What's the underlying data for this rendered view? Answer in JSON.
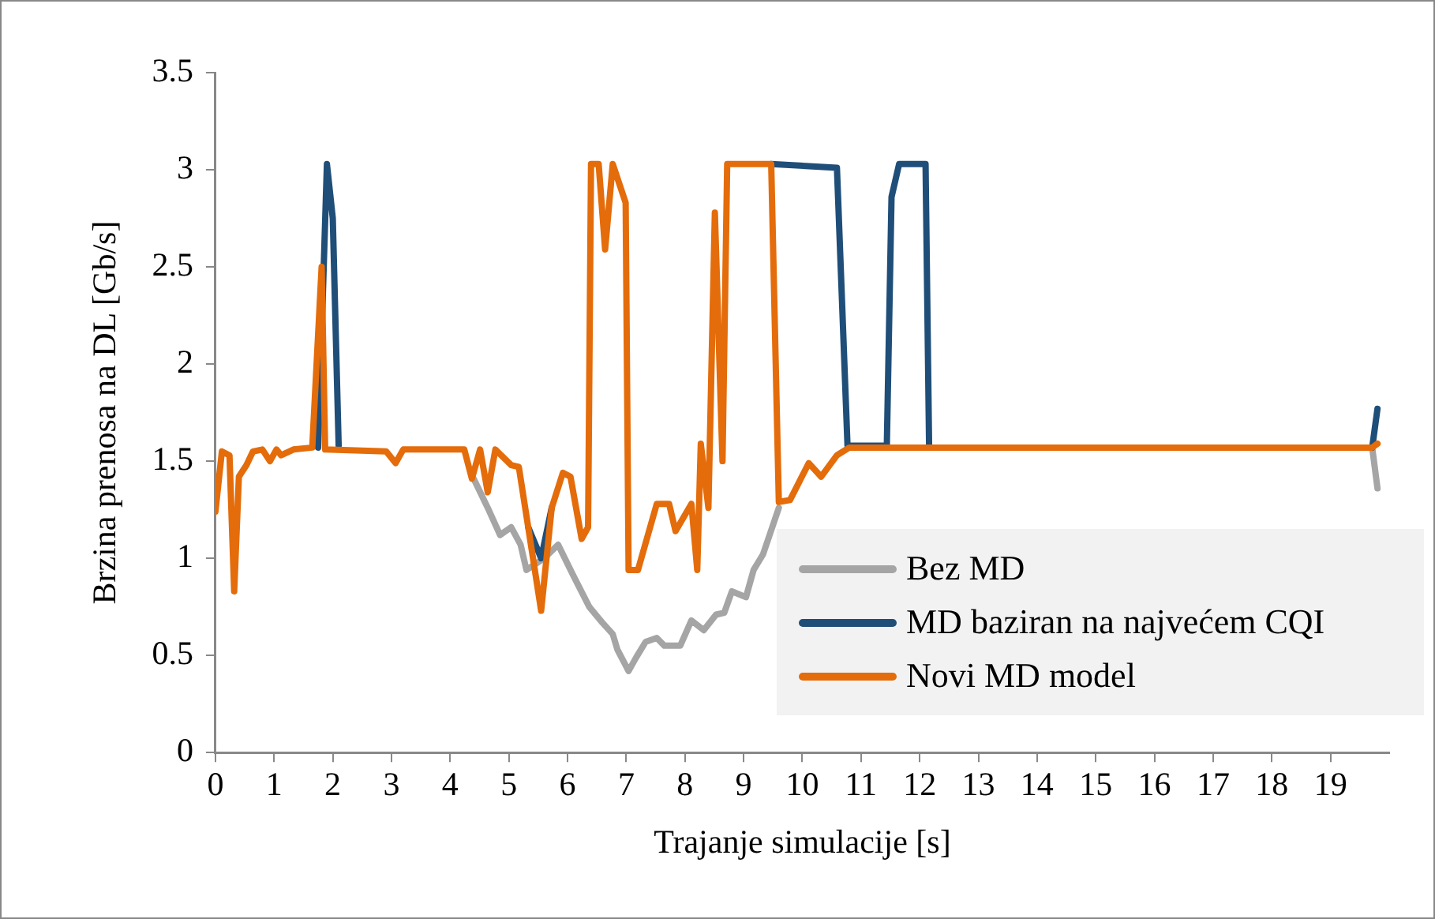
{
  "chart_data": {
    "type": "line",
    "xlabel": "Trajanje simulacije [s]",
    "ylabel": "Brzina prenosa na DL [Gb/s]",
    "xlim": [
      0,
      20
    ],
    "xticks": [
      0,
      1,
      2,
      3,
      4,
      5,
      6,
      7,
      8,
      9,
      10,
      11,
      12,
      13,
      14,
      15,
      16,
      17,
      18,
      19
    ],
    "ylim": [
      0,
      3.5
    ],
    "yticks": [
      0,
      0.5,
      1,
      1.5,
      2,
      2.5,
      3,
      3.5
    ],
    "grid": false,
    "legend": "bottom right",
    "marker": "none",
    "line_style": "solid",
    "series": [
      {
        "name": "Bez MD",
        "color": "#a5a5a5",
        "x": [
          4.4,
          4.64,
          4.85,
          5.04,
          5.2,
          5.3,
          5.6,
          5.84,
          6.1,
          6.37,
          6.59,
          6.77,
          6.85,
          7.04,
          7.17,
          7.33,
          7.52,
          7.65,
          7.92,
          8.11,
          8.32,
          8.53,
          8.67,
          8.8,
          9.04,
          9.17,
          9.33,
          9.6,
          15,
          19.71,
          19.8
        ],
        "values": [
          1.41,
          1.26,
          1.12,
          1.16,
          1.07,
          0.94,
          1.0,
          1.07,
          0.91,
          0.75,
          0.67,
          0.61,
          0.53,
          0.42,
          0.49,
          0.57,
          0.59,
          0.55,
          0.55,
          0.68,
          0.63,
          0.71,
          0.72,
          0.83,
          0.8,
          0.94,
          1.02,
          1.26,
          null,
          1.57,
          1.36
        ]
      },
      {
        "name": "MD baziran na najvećem CQI",
        "color": "#1f4e79",
        "x": [
          1.75,
          1.9,
          2.0,
          2.1,
          4,
          5.33,
          5.55,
          5.73,
          8,
          9.47,
          10.59,
          10.77,
          11.44,
          11.52,
          11.65,
          12.1,
          12.16,
          15,
          19.71,
          19.8
        ],
        "values": [
          1.57,
          3.03,
          2.75,
          1.58,
          null,
          1.16,
          1.0,
          1.26,
          null,
          3.03,
          3.01,
          1.58,
          1.58,
          2.86,
          3.03,
          3.03,
          1.58,
          null,
          1.57,
          1.77
        ]
      },
      {
        "name": "Novi MD model",
        "color": "#e46c0a",
        "x": [
          0,
          0.11,
          0.24,
          0.32,
          0.4,
          0.53,
          0.64,
          0.8,
          0.93,
          1.04,
          1.12,
          1.33,
          1.65,
          1.81,
          1.87,
          2.91,
          3.07,
          3.2,
          4.24,
          4.37,
          4.51,
          4.64,
          4.77,
          5.04,
          5.17,
          5.33,
          5.55,
          5.73,
          5.92,
          6.05,
          6.24,
          6.35,
          6.4,
          6.53,
          6.64,
          6.77,
          6.99,
          7.04,
          7.2,
          7.52,
          7.73,
          7.84,
          8.11,
          8.21,
          8.27,
          8.4,
          8.51,
          8.64,
          8.72,
          9.47,
          9.6,
          9.79,
          10.11,
          10.32,
          10.59,
          10.8,
          19.71,
          19.8
        ],
        "values": [
          1.24,
          1.55,
          1.53,
          0.83,
          1.42,
          1.48,
          1.55,
          1.56,
          1.5,
          1.56,
          1.53,
          1.56,
          1.57,
          2.5,
          1.56,
          1.55,
          1.49,
          1.56,
          1.56,
          1.41,
          1.56,
          1.34,
          1.56,
          1.48,
          1.47,
          1.16,
          0.73,
          1.26,
          1.44,
          1.42,
          1.1,
          1.16,
          3.03,
          3.03,
          2.59,
          3.03,
          2.83,
          0.94,
          0.94,
          1.28,
          1.28,
          1.14,
          1.28,
          0.94,
          1.59,
          1.26,
          2.78,
          1.5,
          3.03,
          3.03,
          1.29,
          1.3,
          1.49,
          1.42,
          1.53,
          1.57,
          1.57,
          1.59
        ]
      }
    ]
  }
}
